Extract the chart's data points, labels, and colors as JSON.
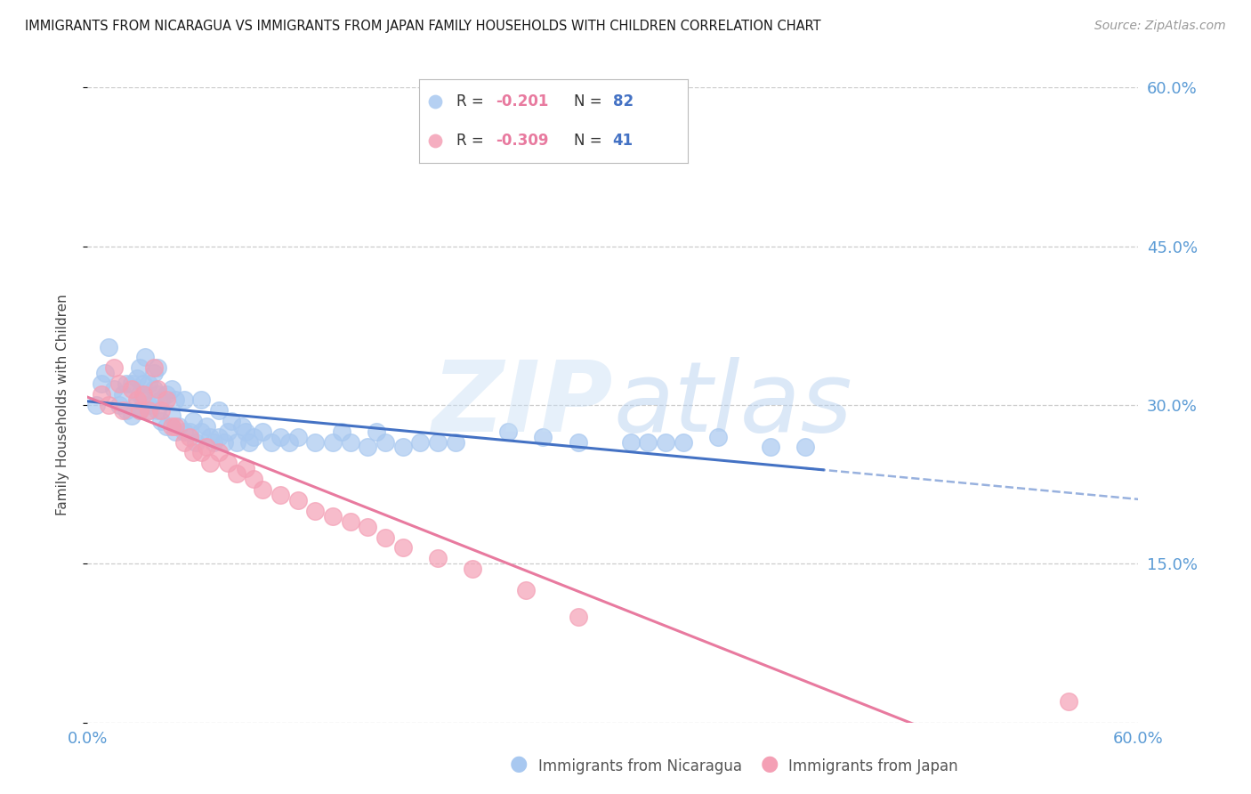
{
  "title": "IMMIGRANTS FROM NICARAGUA VS IMMIGRANTS FROM JAPAN FAMILY HOUSEHOLDS WITH CHILDREN CORRELATION CHART",
  "source": "Source: ZipAtlas.com",
  "ylabel": "Family Households with Children",
  "label_nicaragua": "Immigrants from Nicaragua",
  "label_japan": "Immigrants from Japan",
  "x_min": 0.0,
  "x_max": 0.6,
  "y_min": 0.0,
  "y_max": 0.6,
  "y_ticks": [
    0.0,
    0.15,
    0.3,
    0.45,
    0.6
  ],
  "y_tick_labels": [
    "",
    "15.0%",
    "30.0%",
    "45.0%",
    "60.0%"
  ],
  "x_ticks": [
    0.0,
    0.1,
    0.2,
    0.3,
    0.4,
    0.5,
    0.6
  ],
  "x_tick_labels": [
    "0.0%",
    "",
    "",
    "",
    "",
    "",
    "60.0%"
  ],
  "legend_r1_val": "-0.201",
  "legend_n1_val": "82",
  "legend_r2_val": "-0.309",
  "legend_n2_val": "41",
  "color_blue": "#A8C8F0",
  "color_pink": "#F4A0B5",
  "color_blue_line": "#4472C4",
  "color_pink_line": "#E87A9F",
  "color_axis_label": "#5B9BD5",
  "nicaragua_x": [
    0.005,
    0.008,
    0.01,
    0.012,
    0.015,
    0.018,
    0.02,
    0.022,
    0.022,
    0.025,
    0.025,
    0.028,
    0.028,
    0.03,
    0.03,
    0.03,
    0.032,
    0.032,
    0.033,
    0.035,
    0.035,
    0.036,
    0.038,
    0.038,
    0.04,
    0.04,
    0.04,
    0.042,
    0.042,
    0.045,
    0.045,
    0.048,
    0.048,
    0.05,
    0.05,
    0.052,
    0.055,
    0.055,
    0.058,
    0.06,
    0.062,
    0.065,
    0.065,
    0.068,
    0.07,
    0.072,
    0.075,
    0.075,
    0.078,
    0.08,
    0.082,
    0.085,
    0.088,
    0.09,
    0.092,
    0.095,
    0.1,
    0.105,
    0.11,
    0.115,
    0.12,
    0.13,
    0.14,
    0.145,
    0.15,
    0.16,
    0.165,
    0.17,
    0.18,
    0.19,
    0.2,
    0.21,
    0.24,
    0.26,
    0.28,
    0.31,
    0.32,
    0.33,
    0.34,
    0.36,
    0.39,
    0.41
  ],
  "nicaragua_y": [
    0.3,
    0.32,
    0.33,
    0.355,
    0.315,
    0.3,
    0.31,
    0.295,
    0.32,
    0.29,
    0.32,
    0.3,
    0.325,
    0.295,
    0.31,
    0.335,
    0.305,
    0.32,
    0.345,
    0.3,
    0.32,
    0.295,
    0.315,
    0.33,
    0.295,
    0.31,
    0.335,
    0.285,
    0.305,
    0.28,
    0.31,
    0.29,
    0.315,
    0.275,
    0.305,
    0.28,
    0.275,
    0.305,
    0.275,
    0.285,
    0.265,
    0.275,
    0.305,
    0.28,
    0.27,
    0.265,
    0.27,
    0.295,
    0.265,
    0.275,
    0.285,
    0.265,
    0.28,
    0.275,
    0.265,
    0.27,
    0.275,
    0.265,
    0.27,
    0.265,
    0.27,
    0.265,
    0.265,
    0.275,
    0.265,
    0.26,
    0.275,
    0.265,
    0.26,
    0.265,
    0.265,
    0.265,
    0.275,
    0.27,
    0.265,
    0.265,
    0.265,
    0.265,
    0.265,
    0.27,
    0.26,
    0.26
  ],
  "japan_x": [
    0.008,
    0.012,
    0.015,
    0.018,
    0.02,
    0.025,
    0.028,
    0.03,
    0.032,
    0.035,
    0.038,
    0.04,
    0.042,
    0.045,
    0.048,
    0.05,
    0.055,
    0.058,
    0.06,
    0.065,
    0.068,
    0.07,
    0.075,
    0.08,
    0.085,
    0.09,
    0.095,
    0.1,
    0.11,
    0.12,
    0.13,
    0.14,
    0.15,
    0.16,
    0.17,
    0.18,
    0.2,
    0.22,
    0.25,
    0.28,
    0.56
  ],
  "japan_y": [
    0.31,
    0.3,
    0.335,
    0.32,
    0.295,
    0.315,
    0.305,
    0.295,
    0.31,
    0.295,
    0.335,
    0.315,
    0.295,
    0.305,
    0.28,
    0.28,
    0.265,
    0.27,
    0.255,
    0.255,
    0.26,
    0.245,
    0.255,
    0.245,
    0.235,
    0.24,
    0.23,
    0.22,
    0.215,
    0.21,
    0.2,
    0.195,
    0.19,
    0.185,
    0.175,
    0.165,
    0.155,
    0.145,
    0.125,
    0.1,
    0.02
  ]
}
